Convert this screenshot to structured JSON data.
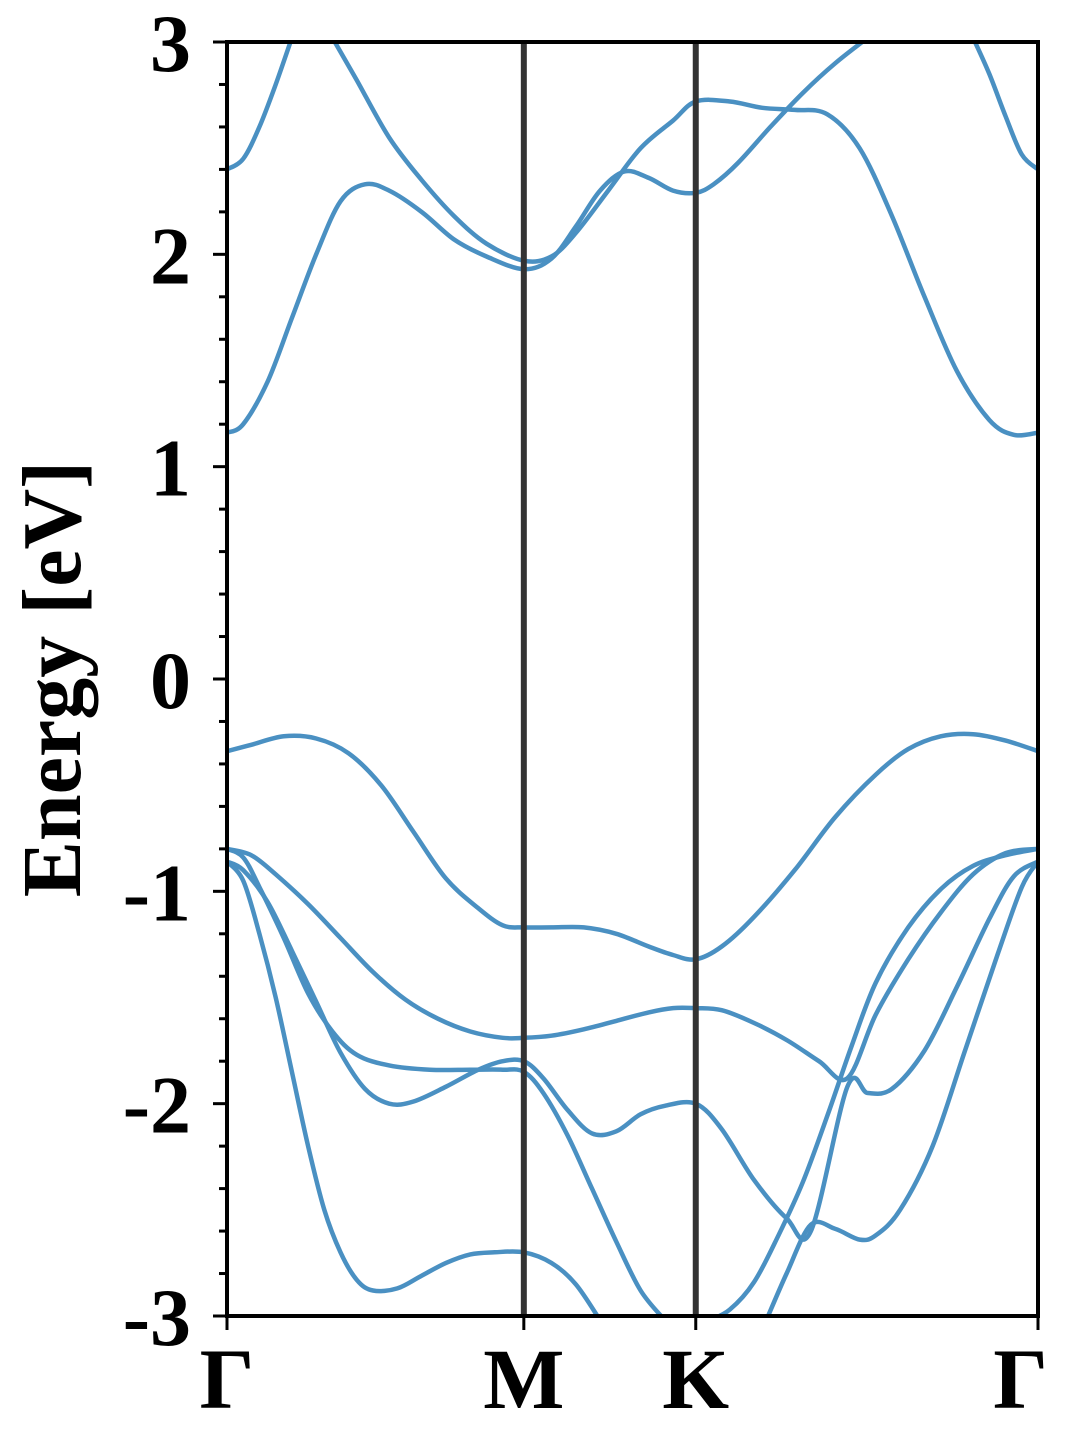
{
  "chart_data": {
    "type": "line",
    "title": "",
    "ylabel": "Energy [eV]",
    "xlabel": "",
    "ylim": [
      -3,
      3
    ],
    "xlim": [
      0,
      1
    ],
    "grid": false,
    "legend": "none",
    "colors": {
      "band": "#4a90c2",
      "kpoint_line": "#333333",
      "axes": "#000000"
    },
    "y_ticks": [
      {
        "value": 3,
        "label": "3"
      },
      {
        "value": 2,
        "label": "2"
      },
      {
        "value": 1,
        "label": "1"
      },
      {
        "value": 0,
        "label": "0"
      },
      {
        "value": -1,
        "label": "-1"
      },
      {
        "value": -2,
        "label": "-2"
      },
      {
        "value": -3,
        "label": "-3"
      }
    ],
    "y_minor_step": 0.2,
    "high_symmetry_points": [
      {
        "label": "Γ",
        "x": 0.0
      },
      {
        "label": "M",
        "x": 0.366
      },
      {
        "label": "K",
        "x": 0.578
      },
      {
        "label": "Γ",
        "x": 1.0
      }
    ],
    "series": [
      {
        "points": [
          [
            0.0,
            2.4
          ],
          [
            0.02,
            2.45
          ],
          [
            0.04,
            2.6
          ],
          [
            0.06,
            2.8
          ],
          [
            0.08,
            3.02
          ]
        ]
      },
      {
        "points": [
          [
            0.13,
            3.02
          ],
          [
            0.16,
            2.82
          ],
          [
            0.2,
            2.55
          ],
          [
            0.24,
            2.35
          ],
          [
            0.28,
            2.18
          ],
          [
            0.32,
            2.05
          ],
          [
            0.366,
            1.97
          ],
          [
            0.4,
            1.99
          ],
          [
            0.43,
            2.1
          ],
          [
            0.47,
            2.3
          ],
          [
            0.51,
            2.5
          ],
          [
            0.55,
            2.63
          ],
          [
            0.578,
            2.72
          ],
          [
            0.62,
            2.72
          ],
          [
            0.66,
            2.69
          ],
          [
            0.7,
            2.68
          ],
          [
            0.74,
            2.66
          ],
          [
            0.78,
            2.5
          ],
          [
            0.82,
            2.18
          ],
          [
            0.86,
            1.8
          ],
          [
            0.9,
            1.45
          ],
          [
            0.94,
            1.22
          ],
          [
            0.97,
            1.15
          ],
          [
            1.0,
            1.16
          ]
        ]
      },
      {
        "points": [
          [
            0.0,
            1.16
          ],
          [
            0.02,
            1.2
          ],
          [
            0.05,
            1.4
          ],
          [
            0.08,
            1.7
          ],
          [
            0.11,
            2.0
          ],
          [
            0.14,
            2.25
          ],
          [
            0.17,
            2.33
          ],
          [
            0.2,
            2.3
          ],
          [
            0.24,
            2.2
          ],
          [
            0.28,
            2.07
          ],
          [
            0.32,
            1.99
          ],
          [
            0.366,
            1.93
          ],
          [
            0.4,
            1.98
          ],
          [
            0.43,
            2.13
          ],
          [
            0.46,
            2.3
          ],
          [
            0.49,
            2.39
          ],
          [
            0.52,
            2.36
          ],
          [
            0.55,
            2.3
          ],
          [
            0.578,
            2.29
          ],
          [
            0.6,
            2.33
          ],
          [
            0.63,
            2.43
          ],
          [
            0.67,
            2.6
          ],
          [
            0.71,
            2.76
          ],
          [
            0.75,
            2.9
          ],
          [
            0.79,
            3.02
          ]
        ]
      },
      {
        "points": [
          [
            0.92,
            3.02
          ],
          [
            0.94,
            2.85
          ],
          [
            0.96,
            2.65
          ],
          [
            0.98,
            2.47
          ],
          [
            1.0,
            2.4
          ]
        ]
      },
      {
        "points": [
          [
            0.0,
            -0.34
          ],
          [
            0.03,
            -0.31
          ],
          [
            0.07,
            -0.27
          ],
          [
            0.11,
            -0.28
          ],
          [
            0.15,
            -0.35
          ],
          [
            0.19,
            -0.5
          ],
          [
            0.23,
            -0.72
          ],
          [
            0.27,
            -0.94
          ],
          [
            0.31,
            -1.08
          ],
          [
            0.34,
            -1.16
          ],
          [
            0.366,
            -1.17
          ],
          [
            0.4,
            -1.17
          ],
          [
            0.44,
            -1.17
          ],
          [
            0.48,
            -1.2
          ],
          [
            0.52,
            -1.26
          ],
          [
            0.55,
            -1.3
          ],
          [
            0.578,
            -1.32
          ],
          [
            0.61,
            -1.26
          ],
          [
            0.65,
            -1.12
          ],
          [
            0.7,
            -0.9
          ],
          [
            0.75,
            -0.65
          ],
          [
            0.8,
            -0.45
          ],
          [
            0.84,
            -0.33
          ],
          [
            0.88,
            -0.27
          ],
          [
            0.92,
            -0.26
          ],
          [
            0.96,
            -0.29
          ],
          [
            1.0,
            -0.34
          ]
        ]
      },
      {
        "points": [
          [
            0.0,
            -0.8
          ],
          [
            0.03,
            -0.83
          ],
          [
            0.06,
            -0.92
          ],
          [
            0.1,
            -1.06
          ],
          [
            0.14,
            -1.22
          ],
          [
            0.18,
            -1.38
          ],
          [
            0.22,
            -1.51
          ],
          [
            0.26,
            -1.6
          ],
          [
            0.3,
            -1.66
          ],
          [
            0.34,
            -1.69
          ],
          [
            0.366,
            -1.69
          ],
          [
            0.4,
            -1.68
          ],
          [
            0.44,
            -1.65
          ],
          [
            0.48,
            -1.61
          ],
          [
            0.52,
            -1.57
          ],
          [
            0.55,
            -1.55
          ],
          [
            0.578,
            -1.55
          ],
          [
            0.61,
            -1.56
          ],
          [
            0.65,
            -1.62
          ],
          [
            0.69,
            -1.7
          ],
          [
            0.73,
            -1.8
          ],
          [
            0.765,
            -1.88
          ],
          [
            0.8,
            -1.58
          ],
          [
            0.84,
            -1.32
          ],
          [
            0.88,
            -1.1
          ],
          [
            0.92,
            -0.92
          ],
          [
            0.96,
            -0.82
          ],
          [
            1.0,
            -0.8
          ]
        ]
      },
      {
        "points": [
          [
            0.0,
            -0.86
          ],
          [
            0.02,
            -0.9
          ],
          [
            0.05,
            -1.05
          ],
          [
            0.08,
            -1.28
          ],
          [
            0.11,
            -1.52
          ],
          [
            0.14,
            -1.76
          ],
          [
            0.17,
            -1.93
          ],
          [
            0.2,
            -2.0
          ],
          [
            0.23,
            -1.99
          ],
          [
            0.27,
            -1.92
          ],
          [
            0.31,
            -1.84
          ],
          [
            0.34,
            -1.8
          ],
          [
            0.366,
            -1.8
          ],
          [
            0.39,
            -1.88
          ],
          [
            0.42,
            -2.03
          ],
          [
            0.45,
            -2.14
          ],
          [
            0.48,
            -2.13
          ],
          [
            0.51,
            -2.05
          ],
          [
            0.54,
            -2.01
          ],
          [
            0.578,
            -2.0
          ],
          [
            0.61,
            -2.12
          ],
          [
            0.65,
            -2.36
          ],
          [
            0.69,
            -2.54
          ],
          [
            0.72,
            -2.6
          ],
          [
            0.765,
            -1.92
          ],
          [
            0.79,
            -1.95
          ],
          [
            0.82,
            -1.93
          ],
          [
            0.86,
            -1.75
          ],
          [
            0.9,
            -1.45
          ],
          [
            0.94,
            -1.13
          ],
          [
            0.97,
            -0.93
          ],
          [
            1.0,
            -0.86
          ]
        ]
      },
      {
        "points": [
          [
            0.0,
            -0.8
          ],
          [
            0.02,
            -0.84
          ],
          [
            0.04,
            -0.98
          ],
          [
            0.07,
            -1.22
          ],
          [
            0.1,
            -1.48
          ],
          [
            0.13,
            -1.66
          ],
          [
            0.16,
            -1.77
          ],
          [
            0.2,
            -1.82
          ],
          [
            0.25,
            -1.84
          ],
          [
            0.3,
            -1.84
          ],
          [
            0.34,
            -1.84
          ],
          [
            0.366,
            -1.85
          ],
          [
            0.39,
            -1.95
          ],
          [
            0.42,
            -2.15
          ],
          [
            0.45,
            -2.4
          ],
          [
            0.48,
            -2.65
          ],
          [
            0.51,
            -2.88
          ],
          [
            0.54,
            -3.02
          ]
        ]
      },
      {
        "points": [
          [
            0.0,
            -0.86
          ],
          [
            0.02,
            -0.95
          ],
          [
            0.04,
            -1.2
          ],
          [
            0.06,
            -1.5
          ],
          [
            0.08,
            -1.85
          ],
          [
            0.1,
            -2.2
          ],
          [
            0.12,
            -2.5
          ],
          [
            0.14,
            -2.7
          ],
          [
            0.16,
            -2.83
          ],
          [
            0.18,
            -2.88
          ],
          [
            0.21,
            -2.87
          ],
          [
            0.24,
            -2.81
          ],
          [
            0.27,
            -2.75
          ],
          [
            0.3,
            -2.71
          ],
          [
            0.33,
            -2.7
          ],
          [
            0.366,
            -2.7
          ],
          [
            0.4,
            -2.75
          ],
          [
            0.43,
            -2.85
          ],
          [
            0.46,
            -3.02
          ]
        ]
      },
      {
        "points": [
          [
            0.595,
            -3.02
          ],
          [
            0.62,
            -2.97
          ],
          [
            0.65,
            -2.84
          ],
          [
            0.68,
            -2.62
          ],
          [
            0.71,
            -2.37
          ],
          [
            0.74,
            -2.06
          ],
          [
            0.77,
            -1.73
          ],
          [
            0.8,
            -1.43
          ],
          [
            0.84,
            -1.17
          ],
          [
            0.88,
            -0.99
          ],
          [
            0.92,
            -0.88
          ],
          [
            0.96,
            -0.83
          ],
          [
            1.0,
            -0.8
          ]
        ]
      },
      {
        "points": [
          [
            0.665,
            -3.02
          ],
          [
            0.69,
            -2.8
          ],
          [
            0.72,
            -2.57
          ],
          [
            0.75,
            -2.59
          ],
          [
            0.78,
            -2.64
          ],
          [
            0.8,
            -2.62
          ],
          [
            0.83,
            -2.5
          ],
          [
            0.87,
            -2.2
          ],
          [
            0.91,
            -1.75
          ],
          [
            0.95,
            -1.3
          ],
          [
            0.98,
            -0.98
          ],
          [
            1.0,
            -0.86
          ]
        ]
      }
    ]
  }
}
